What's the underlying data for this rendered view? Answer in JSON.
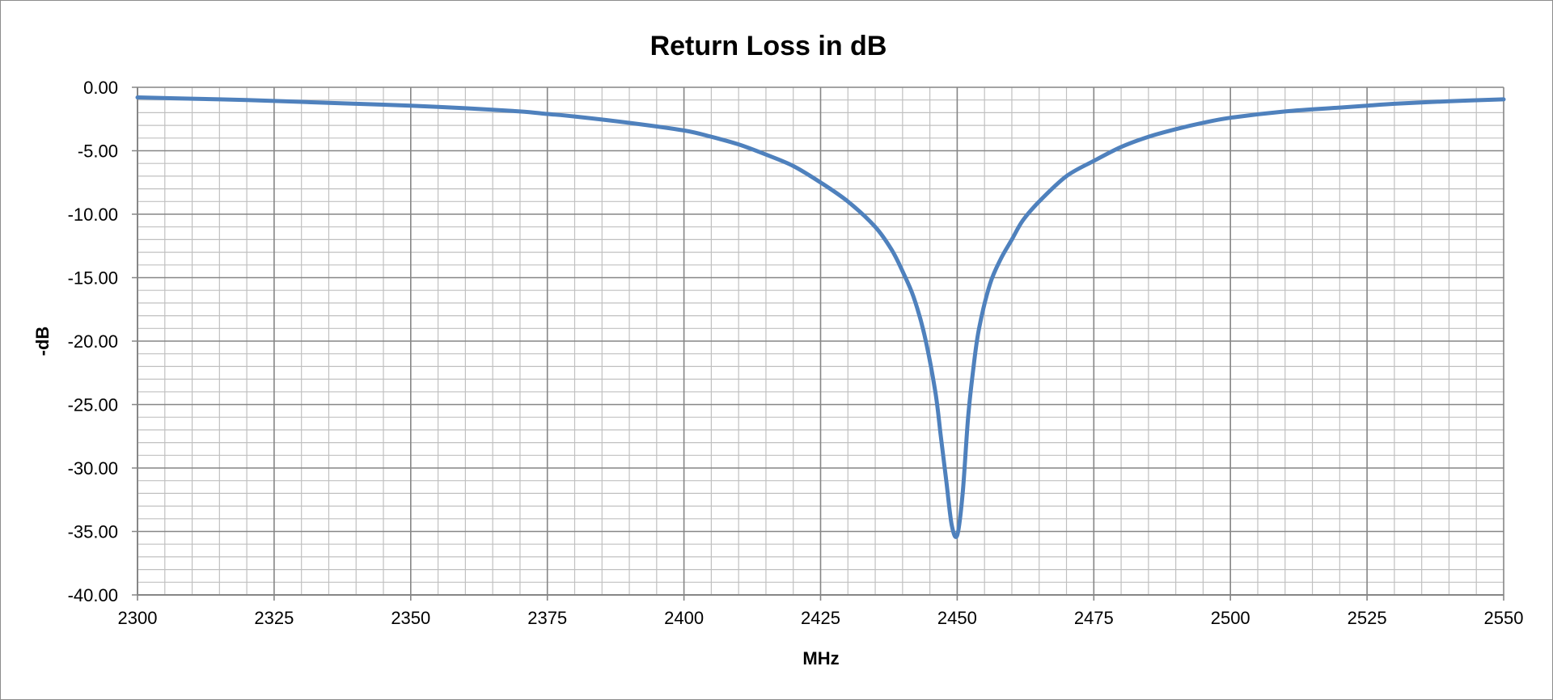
{
  "chart_data": {
    "type": "line",
    "title": "Return Loss in dB",
    "xlabel": "MHz",
    "ylabel": "-dB",
    "xlim": [
      2300,
      2550
    ],
    "ylim": [
      -40,
      0
    ],
    "x_ticks": [
      2300,
      2325,
      2350,
      2375,
      2400,
      2425,
      2450,
      2475,
      2500,
      2525,
      2550
    ],
    "x_tick_labels": [
      "2300",
      "2325",
      "2350",
      "2375",
      "2400",
      "2425",
      "2450",
      "2475",
      "2500",
      "2525",
      "2550"
    ],
    "y_ticks": [
      0,
      -5,
      -10,
      -15,
      -20,
      -25,
      -30,
      -35,
      -40
    ],
    "y_tick_labels": [
      "0.00",
      "-5.00",
      "-10.00",
      "-15.00",
      "-20.00",
      "-25.00",
      "-30.00",
      "-35.00",
      "-40.00"
    ],
    "x_minor_step": 5,
    "y_minor_step": 1,
    "grid": true,
    "legend": "none",
    "colors": {
      "series": "#4f81bd",
      "major_grid": "#868686",
      "minor_grid": "#c0c0c0",
      "frame": "#8c8c8c"
    },
    "series": [
      {
        "x": [
          2300,
          2310,
          2320,
          2330,
          2340,
          2350,
          2360,
          2370,
          2375,
          2380,
          2390,
          2400,
          2405,
          2410,
          2415,
          2420,
          2425,
          2430,
          2435,
          2438,
          2440,
          2442,
          2444,
          2446,
          2447,
          2448,
          2449,
          2450,
          2451,
          2452,
          2453,
          2454,
          2456,
          2458,
          2460,
          2462,
          2465,
          2470,
          2475,
          2480,
          2485,
          2490,
          2495,
          2500,
          2510,
          2520,
          2525,
          2530,
          2540,
          2550
        ],
        "values": [
          -0.8,
          -0.9,
          -1.0,
          -1.15,
          -1.3,
          -1.45,
          -1.65,
          -1.9,
          -2.1,
          -2.3,
          -2.8,
          -3.4,
          -3.9,
          -4.5,
          -5.3,
          -6.2,
          -7.5,
          -9.0,
          -11.0,
          -12.8,
          -14.5,
          -16.5,
          -19.5,
          -24.0,
          -27.5,
          -31.0,
          -34.5,
          -35.3,
          -32.0,
          -26.0,
          -22.0,
          -19.0,
          -15.5,
          -13.5,
          -12.0,
          -10.5,
          -9.0,
          -7.0,
          -5.8,
          -4.7,
          -3.9,
          -3.3,
          -2.8,
          -2.4,
          -1.9,
          -1.6,
          -1.45,
          -1.3,
          -1.1,
          -0.95
        ]
      }
    ]
  }
}
